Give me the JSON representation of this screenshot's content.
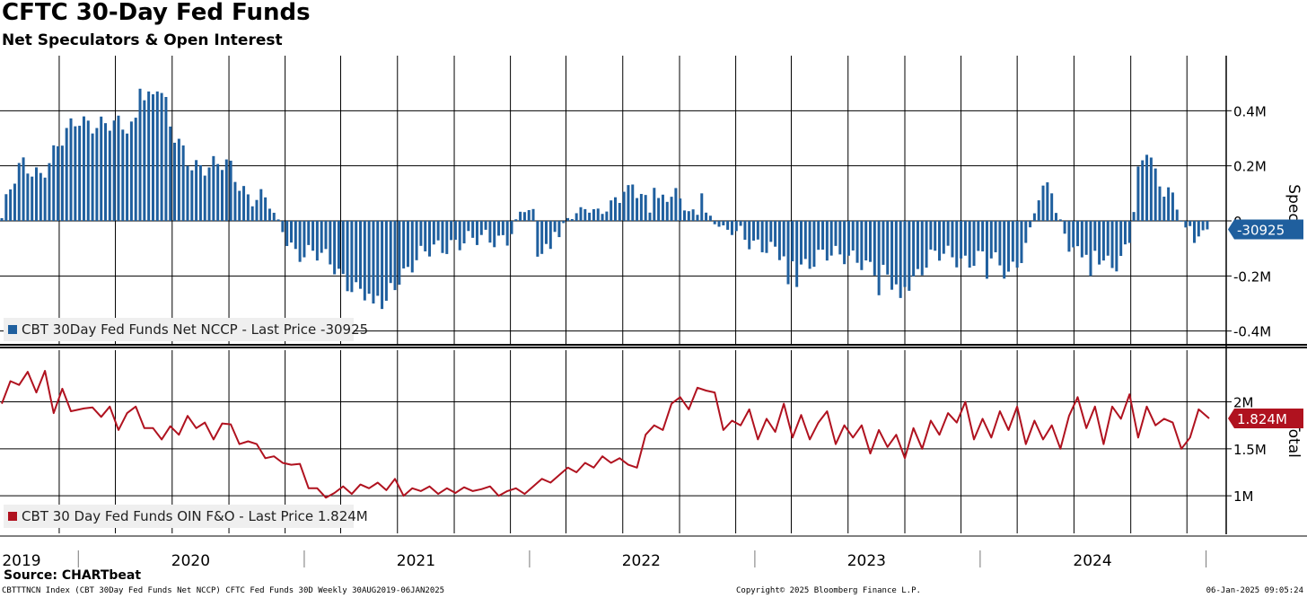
{
  "title": "CFTC 30-Day Fed Funds",
  "subtitle": "Net Speculators & Open Interest",
  "source": "Source: CHARTbeat",
  "footer": {
    "left": "CBTTTNCN Index (CBT 30Day Fed Funds Net NCCP) CFTC Fed Funds 30D  Weekly 30AUG2019-06JAN2025",
    "middle": "Copyright© 2025 Bloomberg Finance L.P.",
    "right": "06-Jan-2025 09:05:24"
  },
  "colors": {
    "spec_bar": "#1f5f9e",
    "total_line": "#b0121f",
    "grid": "#000000",
    "legend_bg": "#efefef"
  },
  "chart_data": [
    {
      "type": "bar",
      "panel": "top",
      "axis_title": "Spec",
      "legend_label": "CBT 30Day Fed Funds Net NCCP - Last Price -30925",
      "last_value_label": "-30925",
      "last_value": -30925,
      "ylim": [
        -0.45,
        0.6
      ],
      "y_ticks": [
        0.4,
        0.2,
        0,
        -0.2,
        -0.4
      ],
      "y_tick_labels": [
        "0.4M",
        "0.2M",
        "0",
        "-0.2M",
        "-0.4M"
      ],
      "y_unit": "millions of contracts",
      "x_start": "2019-08-30",
      "x_end": "2025-01-06",
      "frequency": "weekly",
      "anchors": [
        [
          "2019-08-30",
          0.01
        ],
        [
          "2019-09-15",
          0.12
        ],
        [
          "2019-10-01",
          0.2
        ],
        [
          "2019-11-01",
          0.18
        ],
        [
          "2019-12-01",
          0.27
        ],
        [
          "2020-01-01",
          0.37
        ],
        [
          "2020-02-01",
          0.36
        ],
        [
          "2020-03-15",
          0.33
        ],
        [
          "2020-04-01",
          0.35
        ],
        [
          "2020-04-15",
          0.47
        ],
        [
          "2020-05-15",
          0.45
        ],
        [
          "2020-06-01",
          0.31
        ],
        [
          "2020-07-01",
          0.22
        ],
        [
          "2020-08-01",
          0.19
        ],
        [
          "2020-09-01",
          0.2
        ],
        [
          "2020-10-01",
          0.1
        ],
        [
          "2020-11-01",
          0.07
        ],
        [
          "2020-11-20",
          -0.01
        ],
        [
          "2020-12-15",
          -0.1
        ],
        [
          "2021-01-15",
          -0.12
        ],
        [
          "2021-02-15",
          -0.16
        ],
        [
          "2021-03-15",
          -0.22
        ],
        [
          "2021-04-15",
          -0.28
        ],
        [
          "2021-05-10",
          -0.28
        ],
        [
          "2021-06-01",
          -0.2
        ],
        [
          "2021-07-01",
          -0.15
        ],
        [
          "2021-08-01",
          -0.1
        ],
        [
          "2021-09-01",
          -0.07
        ],
        [
          "2021-10-01",
          -0.08
        ],
        [
          "2021-11-01",
          -0.06
        ],
        [
          "2021-12-01",
          -0.05
        ],
        [
          "2021-12-20",
          0.04
        ],
        [
          "2022-01-15",
          0.02
        ],
        [
          "2022-02-01",
          -0.12
        ],
        [
          "2022-03-01",
          0.0
        ],
        [
          "2022-04-01",
          0.04
        ],
        [
          "2022-05-01",
          0.04
        ],
        [
          "2022-06-15",
          0.12
        ],
        [
          "2022-07-15",
          0.06
        ],
        [
          "2022-08-15",
          0.1
        ],
        [
          "2022-09-15",
          0.03
        ],
        [
          "2022-10-15",
          0.03
        ],
        [
          "2022-11-15",
          -0.04
        ],
        [
          "2022-12-15",
          -0.06
        ],
        [
          "2023-01-15",
          -0.08
        ],
        [
          "2023-02-15",
          -0.14
        ],
        [
          "2023-03-15",
          -0.16
        ],
        [
          "2023-04-15",
          -0.12
        ],
        [
          "2023-05-15",
          -0.14
        ],
        [
          "2023-06-15",
          -0.12
        ],
        [
          "2023-07-15",
          -0.18
        ],
        [
          "2023-08-15",
          -0.24
        ],
        [
          "2023-09-15",
          -0.2
        ],
        [
          "2023-10-15",
          -0.14
        ],
        [
          "2023-11-15",
          -0.12
        ],
        [
          "2023-12-15",
          -0.14
        ],
        [
          "2024-01-15",
          -0.14
        ],
        [
          "2024-02-15",
          -0.18
        ],
        [
          "2024-03-15",
          -0.1
        ],
        [
          "2024-04-01",
          0.06
        ],
        [
          "2024-04-15",
          0.09
        ],
        [
          "2024-05-01",
          0.04
        ],
        [
          "2024-05-10",
          0.0
        ],
        [
          "2024-06-01",
          -0.11
        ],
        [
          "2024-07-01",
          -0.13
        ],
        [
          "2024-08-01",
          -0.15
        ],
        [
          "2024-08-20",
          -0.12
        ],
        [
          "2024-09-01",
          -0.05
        ],
        [
          "2024-09-15",
          0.19
        ],
        [
          "2024-10-01",
          0.22
        ],
        [
          "2024-10-15",
          0.14
        ],
        [
          "2024-11-01",
          0.13
        ],
        [
          "2024-11-15",
          0.05
        ],
        [
          "2024-12-01",
          -0.05
        ],
        [
          "2024-12-20",
          -0.06
        ],
        [
          "2025-01-06",
          -0.031
        ]
      ],
      "spikes": [
        [
          "2020-04-10",
          0.48
        ],
        [
          "2020-04-24",
          0.47
        ],
        [
          "2020-05-08",
          0.47
        ],
        [
          "2020-05-22",
          0.45
        ],
        [
          "2021-04-23",
          -0.3
        ],
        [
          "2021-05-07",
          -0.32
        ],
        [
          "2021-05-14",
          -0.29
        ],
        [
          "2022-01-14",
          -0.13
        ],
        [
          "2022-01-21",
          -0.12
        ],
        [
          "2022-02-11",
          -0.04
        ],
        [
          "2022-06-10",
          0.13
        ],
        [
          "2022-07-22",
          0.12
        ],
        [
          "2022-10-07",
          0.1
        ],
        [
          "2023-02-24",
          -0.23
        ],
        [
          "2023-03-10",
          -0.24
        ],
        [
          "2023-07-21",
          -0.27
        ],
        [
          "2023-08-11",
          -0.25
        ],
        [
          "2023-08-25",
          -0.28
        ],
        [
          "2024-01-12",
          -0.21
        ],
        [
          "2024-04-19",
          0.14
        ],
        [
          "2024-04-26",
          0.1
        ],
        [
          "2024-06-28",
          -0.2
        ],
        [
          "2024-09-20",
          0.22
        ],
        [
          "2024-09-27",
          0.24
        ],
        [
          "2024-10-04",
          0.23
        ],
        [
          "2024-12-13",
          -0.08
        ]
      ]
    },
    {
      "type": "line",
      "panel": "bottom",
      "axis_title": "Total",
      "legend_label": "CBT 30 Day Fed Funds OIN F&O - Last Price 1.824M",
      "last_value_label": "1.824M",
      "last_value": 1.824,
      "ylim": [
        0.6,
        2.55
      ],
      "y_ticks": [
        2.0,
        1.5,
        1.0
      ],
      "y_tick_labels": [
        "2M",
        "1.5M",
        "1M"
      ],
      "y_unit": "millions of contracts",
      "x_start": "2019-08-30",
      "x_end": "2025-01-06",
      "frequency": "weekly",
      "points": [
        [
          "2019-08-30",
          1.98
        ],
        [
          "2019-09-13",
          2.22
        ],
        [
          "2019-09-27",
          2.18
        ],
        [
          "2019-10-11",
          2.32
        ],
        [
          "2019-10-25",
          2.1
        ],
        [
          "2019-11-08",
          2.33
        ],
        [
          "2019-11-22",
          1.88
        ],
        [
          "2019-12-06",
          2.14
        ],
        [
          "2019-12-20",
          1.9
        ],
        [
          "2020-01-10",
          1.93
        ],
        [
          "2020-01-24",
          1.94
        ],
        [
          "2020-02-07",
          1.84
        ],
        [
          "2020-02-21",
          1.95
        ],
        [
          "2020-03-06",
          1.7
        ],
        [
          "2020-03-20",
          1.88
        ],
        [
          "2020-04-03",
          1.95
        ],
        [
          "2020-04-17",
          1.72
        ],
        [
          "2020-05-01",
          1.72
        ],
        [
          "2020-05-15",
          1.6
        ],
        [
          "2020-05-29",
          1.74
        ],
        [
          "2020-06-12",
          1.65
        ],
        [
          "2020-06-26",
          1.85
        ],
        [
          "2020-07-10",
          1.72
        ],
        [
          "2020-07-24",
          1.78
        ],
        [
          "2020-08-07",
          1.6
        ],
        [
          "2020-08-21",
          1.77
        ],
        [
          "2020-09-04",
          1.76
        ],
        [
          "2020-09-18",
          1.55
        ],
        [
          "2020-10-02",
          1.58
        ],
        [
          "2020-10-16",
          1.55
        ],
        [
          "2020-10-30",
          1.4
        ],
        [
          "2020-11-13",
          1.42
        ],
        [
          "2020-11-27",
          1.35
        ],
        [
          "2020-12-11",
          1.33
        ],
        [
          "2020-12-25",
          1.34
        ],
        [
          "2021-01-08",
          1.08
        ],
        [
          "2021-01-22",
          1.08
        ],
        [
          "2021-02-05",
          0.98
        ],
        [
          "2021-02-19",
          1.03
        ],
        [
          "2021-03-05",
          1.1
        ],
        [
          "2021-03-19",
          1.02
        ],
        [
          "2021-04-02",
          1.12
        ],
        [
          "2021-04-16",
          1.08
        ],
        [
          "2021-04-30",
          1.14
        ],
        [
          "2021-05-14",
          1.06
        ],
        [
          "2021-05-28",
          1.18
        ],
        [
          "2021-06-11",
          1.0
        ],
        [
          "2021-06-25",
          1.08
        ],
        [
          "2021-07-09",
          1.05
        ],
        [
          "2021-07-23",
          1.1
        ],
        [
          "2021-08-06",
          1.02
        ],
        [
          "2021-08-20",
          1.08
        ],
        [
          "2021-09-03",
          1.03
        ],
        [
          "2021-09-17",
          1.09
        ],
        [
          "2021-10-01",
          1.05
        ],
        [
          "2021-10-15",
          1.07
        ],
        [
          "2021-10-29",
          1.1
        ],
        [
          "2021-11-12",
          1.0
        ],
        [
          "2021-11-26",
          1.05
        ],
        [
          "2021-12-10",
          1.08
        ],
        [
          "2021-12-24",
          1.02
        ],
        [
          "2022-01-07",
          1.1
        ],
        [
          "2022-01-21",
          1.18
        ],
        [
          "2022-02-04",
          1.14
        ],
        [
          "2022-02-18",
          1.22
        ],
        [
          "2022-03-04",
          1.3
        ],
        [
          "2022-03-18",
          1.25
        ],
        [
          "2022-04-01",
          1.35
        ],
        [
          "2022-04-15",
          1.3
        ],
        [
          "2022-04-29",
          1.42
        ],
        [
          "2022-05-13",
          1.35
        ],
        [
          "2022-05-27",
          1.4
        ],
        [
          "2022-06-10",
          1.33
        ],
        [
          "2022-06-24",
          1.3
        ],
        [
          "2022-07-08",
          1.65
        ],
        [
          "2022-07-22",
          1.75
        ],
        [
          "2022-08-05",
          1.7
        ],
        [
          "2022-08-19",
          1.98
        ],
        [
          "2022-09-02",
          2.05
        ],
        [
          "2022-09-16",
          1.92
        ],
        [
          "2022-09-30",
          2.15
        ],
        [
          "2022-10-14",
          2.12
        ],
        [
          "2022-10-28",
          2.1
        ],
        [
          "2022-11-11",
          1.7
        ],
        [
          "2022-11-25",
          1.8
        ],
        [
          "2022-12-09",
          1.75
        ],
        [
          "2022-12-23",
          1.92
        ],
        [
          "2023-01-06",
          1.6
        ],
        [
          "2023-01-20",
          1.82
        ],
        [
          "2023-02-03",
          1.68
        ],
        [
          "2023-02-17",
          1.98
        ],
        [
          "2023-03-03",
          1.62
        ],
        [
          "2023-03-17",
          1.86
        ],
        [
          "2023-03-31",
          1.6
        ],
        [
          "2023-04-14",
          1.78
        ],
        [
          "2023-04-28",
          1.9
        ],
        [
          "2023-05-12",
          1.55
        ],
        [
          "2023-05-26",
          1.75
        ],
        [
          "2023-06-09",
          1.62
        ],
        [
          "2023-06-23",
          1.75
        ],
        [
          "2023-07-07",
          1.45
        ],
        [
          "2023-07-21",
          1.7
        ],
        [
          "2023-08-04",
          1.52
        ],
        [
          "2023-08-18",
          1.65
        ],
        [
          "2023-09-01",
          1.4
        ],
        [
          "2023-09-15",
          1.72
        ],
        [
          "2023-09-29",
          1.5
        ],
        [
          "2023-10-13",
          1.8
        ],
        [
          "2023-10-27",
          1.65
        ],
        [
          "2023-11-10",
          1.88
        ],
        [
          "2023-11-24",
          1.78
        ],
        [
          "2023-12-08",
          2.0
        ],
        [
          "2023-12-22",
          1.6
        ],
        [
          "2024-01-05",
          1.82
        ],
        [
          "2024-01-19",
          1.62
        ],
        [
          "2024-02-02",
          1.9
        ],
        [
          "2024-02-16",
          1.7
        ],
        [
          "2024-03-01",
          1.95
        ],
        [
          "2024-03-15",
          1.55
        ],
        [
          "2024-03-29",
          1.8
        ],
        [
          "2024-04-12",
          1.6
        ],
        [
          "2024-04-26",
          1.75
        ],
        [
          "2024-05-10",
          1.5
        ],
        [
          "2024-05-24",
          1.85
        ],
        [
          "2024-06-07",
          2.05
        ],
        [
          "2024-06-21",
          1.72
        ],
        [
          "2024-07-05",
          1.95
        ],
        [
          "2024-07-19",
          1.55
        ],
        [
          "2024-08-02",
          1.95
        ],
        [
          "2024-08-16",
          1.82
        ],
        [
          "2024-08-30",
          2.08
        ],
        [
          "2024-09-13",
          1.62
        ],
        [
          "2024-09-27",
          1.95
        ],
        [
          "2024-10-11",
          1.75
        ],
        [
          "2024-10-25",
          1.82
        ],
        [
          "2024-11-08",
          1.78
        ],
        [
          "2024-11-22",
          1.5
        ],
        [
          "2024-12-06",
          1.62
        ],
        [
          "2024-12-20",
          1.92
        ],
        [
          "2025-01-06",
          1.824
        ]
      ]
    }
  ],
  "x_axis": {
    "year_labels": [
      "2019",
      "2020",
      "2021",
      "2022",
      "2023",
      "2024"
    ],
    "year_dates": [
      "2019-10-01",
      "2020-07-01",
      "2021-07-01",
      "2022-07-01",
      "2023-07-01",
      "2024-07-01"
    ],
    "gridline_dates": [
      "2019-12-01",
      "2020-03-01",
      "2020-06-01",
      "2020-09-01",
      "2020-12-01",
      "2021-03-01",
      "2021-06-01",
      "2021-09-01",
      "2021-12-01",
      "2022-03-01",
      "2022-06-01",
      "2022-09-01",
      "2022-12-01",
      "2023-03-01",
      "2023-06-01",
      "2023-09-01",
      "2023-12-01",
      "2024-03-01",
      "2024-06-01",
      "2024-09-01",
      "2024-12-01"
    ],
    "year_boundary_dates": [
      "2020-01-01",
      "2021-01-01",
      "2022-01-01",
      "2023-01-01",
      "2024-01-01",
      "2025-01-01"
    ]
  }
}
